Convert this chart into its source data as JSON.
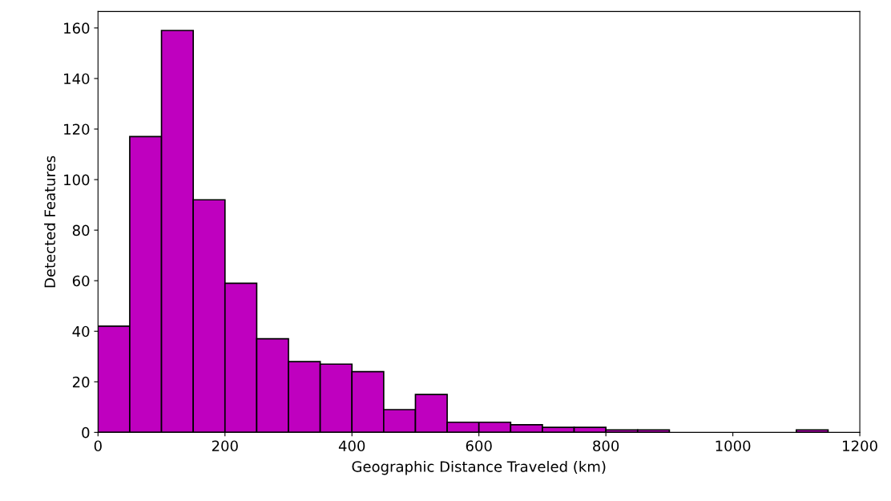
{
  "chart_data": {
    "type": "histogram",
    "xlabel": "Geographic Distance Traveled (km)",
    "ylabel": "Detected Features",
    "bins": [
      0,
      50,
      100,
      150,
      200,
      250,
      300,
      350,
      400,
      450,
      500,
      550,
      600,
      650,
      700,
      750,
      800,
      850,
      900,
      950,
      1000,
      1050,
      1100,
      1150
    ],
    "values": [
      42,
      117,
      159,
      92,
      59,
      37,
      28,
      27,
      24,
      9,
      15,
      4,
      4,
      3,
      2,
      2,
      1,
      1,
      0,
      0,
      0,
      0,
      1
    ],
    "color": "#bf00bf",
    "xlim": [
      0,
      1200
    ],
    "xticks": [
      0,
      200,
      400,
      600,
      800,
      1000,
      1200
    ],
    "ylim": [
      0,
      166.5
    ],
    "yticks": [
      0,
      20,
      40,
      60,
      80,
      100,
      120,
      140,
      160
    ],
    "grid": false
  }
}
